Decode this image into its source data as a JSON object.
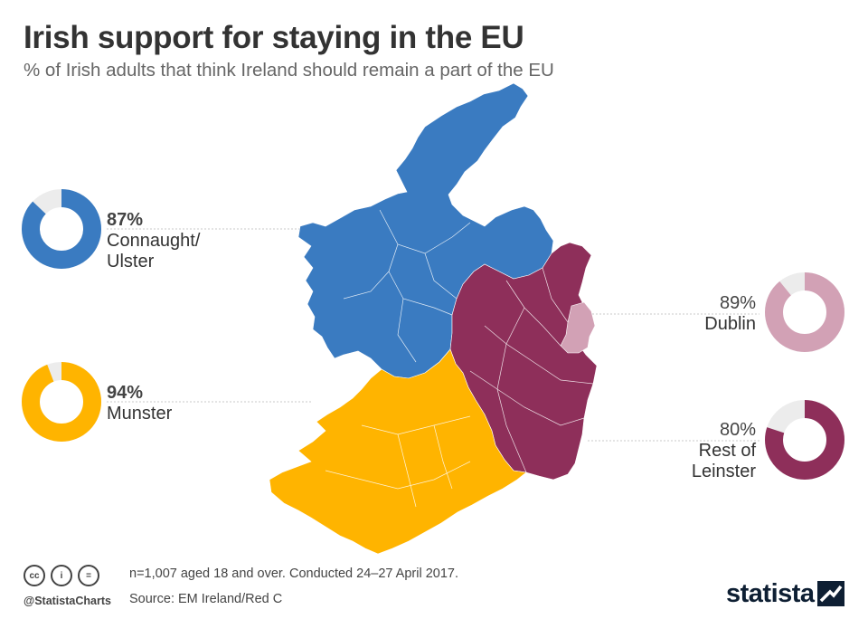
{
  "header": {
    "title": "Irish support for staying in the EU",
    "subtitle": "% of Irish adults that think Ireland should remain a part of the EU"
  },
  "chart_data": {
    "type": "donut-map",
    "title": "Irish support for staying in the EU",
    "subtitle": "% of Irish adults that think Ireland should remain a part of the EU",
    "series": [
      {
        "name": "Connaught/ Ulster",
        "value": 87,
        "label": "87%",
        "color": "#3a7bc1"
      },
      {
        "name": "Munster",
        "value": 94,
        "label": "94%",
        "color": "#ffb400"
      },
      {
        "name": "Dublin",
        "value": 89,
        "label": "89%",
        "color": "#d2a1b5"
      },
      {
        "name": "Rest of Leinster",
        "value": 80,
        "label": "80%",
        "color": "#8e2f5a"
      }
    ]
  },
  "labels": {
    "connaught_pct": "87%",
    "connaught_l1": "Connaught/",
    "connaught_l2": "Ulster",
    "munster_pct": "94%",
    "munster_l1": "Munster",
    "dublin_pct": "89%",
    "dublin_l1": "Dublin",
    "leinster_pct": "80%",
    "leinster_l1": "Rest of",
    "leinster_l2": "Leinster"
  },
  "footer": {
    "note": "n=1,007 aged 18 and over. Conducted 24–27 April 2017.",
    "source": "Source: EM Ireland/Red C",
    "handle": "@StatistaCharts",
    "logo": "statista",
    "icons": [
      "cc-icon",
      "by-icon",
      "nd-icon"
    ],
    "cc_glyphs": [
      "cc",
      "i",
      "="
    ]
  },
  "colors": {
    "connaught_ulster": "#3a7bc1",
    "munster": "#ffb400",
    "dublin": "#d2a1b5",
    "rest_of_leinster": "#8e2f5a",
    "donut_remainder": "#ececec"
  }
}
